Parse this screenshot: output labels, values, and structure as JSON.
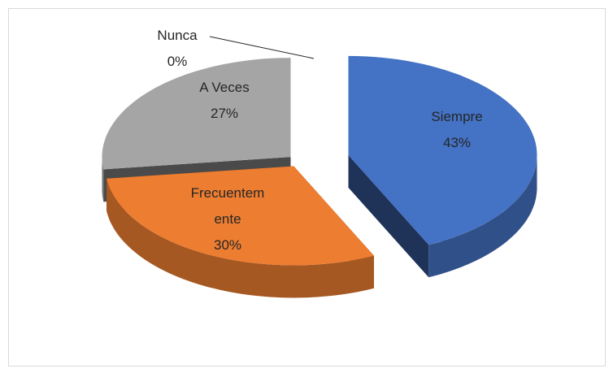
{
  "chart_data": {
    "type": "pie",
    "categories": [
      "Siempre",
      "Frecuentemente",
      "A Veces",
      "Nunca"
    ],
    "values": [
      43,
      30,
      27,
      0
    ],
    "value_labels": [
      "43%",
      "30%",
      "27%",
      "0%"
    ],
    "colors": [
      "#4472c4",
      "#ed7d31",
      "#a5a5a5",
      "#ffc000"
    ]
  }
}
